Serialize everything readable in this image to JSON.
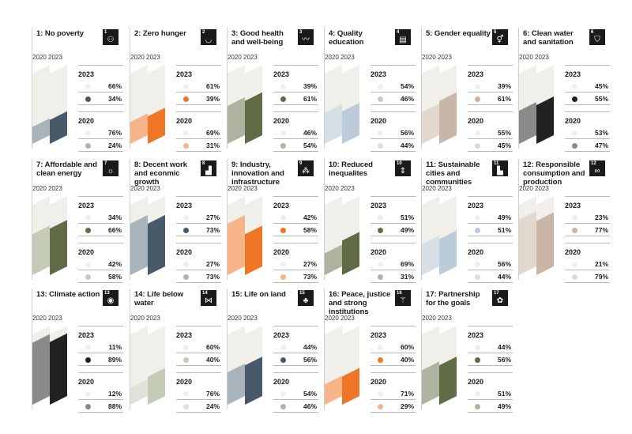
{
  "colors": {
    "negative": "#f1efea"
  },
  "chart_data": [
    {
      "type": "bar",
      "goal": "1",
      "title": "1: No poverty",
      "badge_number": "1",
      "badge_icon": "family-icon",
      "years": [
        "2020",
        "2023"
      ],
      "series": [
        {
          "year": "2023",
          "values": [
            "66%",
            "34%"
          ],
          "colors": [
            "#f1efea",
            "#48596a"
          ]
        },
        {
          "year": "2020",
          "values": [
            "76%",
            "24%"
          ],
          "colors": [
            "#f1efea",
            "#a9b3bb"
          ]
        }
      ]
    },
    {
      "type": "bar",
      "goal": "2",
      "title": "2: Zero hunger",
      "badge_number": "2",
      "badge_icon": "bowl-icon",
      "years": [
        "2020",
        "2023"
      ],
      "series": [
        {
          "year": "2023",
          "values": [
            "61%",
            "39%"
          ],
          "colors": [
            "#f1efea",
            "#ee7626"
          ]
        },
        {
          "year": "2020",
          "values": [
            "69%",
            "31%"
          ],
          "colors": [
            "#f1efea",
            "#f7b489"
          ]
        }
      ]
    },
    {
      "type": "bar",
      "goal": "3",
      "title": "3: Good health and well-being",
      "badge_number": "3",
      "badge_icon": "heartbeat-icon",
      "years": [
        "2020",
        "2023"
      ],
      "series": [
        {
          "year": "2023",
          "values": [
            "39%",
            "61%"
          ],
          "colors": [
            "#f1efea",
            "#5f6c45"
          ]
        },
        {
          "year": "2020",
          "values": [
            "46%",
            "54%"
          ],
          "colors": [
            "#f1efea",
            "#aeb49f"
          ]
        }
      ]
    },
    {
      "type": "bar",
      "goal": "4",
      "title": "4: Quality education",
      "badge_number": "4",
      "badge_icon": "book-icon",
      "years": [
        "2020",
        "2023"
      ],
      "series": [
        {
          "year": "2023",
          "values": [
            "54%",
            "46%"
          ],
          "colors": [
            "#f1efea",
            "#bccbda"
          ]
        },
        {
          "year": "2020",
          "values": [
            "56%",
            "44%"
          ],
          "colors": [
            "#f1efea",
            "#d7dee6"
          ]
        }
      ]
    },
    {
      "type": "bar",
      "goal": "5",
      "title": "5: Gender equality",
      "badge_number": "5",
      "badge_icon": "gender-icon",
      "years": [
        "2020",
        "2023"
      ],
      "series": [
        {
          "year": "2023",
          "values": [
            "39%",
            "61%"
          ],
          "colors": [
            "#f1efea",
            "#c9b6a6"
          ]
        },
        {
          "year": "2020",
          "values": [
            "55%",
            "45%"
          ],
          "colors": [
            "#f1efea",
            "#e2d8cd"
          ]
        }
      ]
    },
    {
      "type": "bar",
      "goal": "6",
      "title": "6: Clean water and sanitation",
      "badge_number": "6",
      "badge_icon": "water-glass-icon",
      "years": [
        "2020",
        "2023"
      ],
      "series": [
        {
          "year": "2023",
          "values": [
            "45%",
            "55%"
          ],
          "colors": [
            "#f1efea",
            "#222222"
          ]
        },
        {
          "year": "2020",
          "values": [
            "53%",
            "47%"
          ],
          "colors": [
            "#f1efea",
            "#8a8a8a"
          ]
        }
      ]
    },
    {
      "type": "bar",
      "goal": "7",
      "title": "7: Affordable and clean energy",
      "badge_number": "7",
      "badge_icon": "sun-icon",
      "years": [
        "2020",
        "2023"
      ],
      "series": [
        {
          "year": "2023",
          "values": [
            "34%",
            "66%"
          ],
          "colors": [
            "#f1efea",
            "#5f6c45"
          ]
        },
        {
          "year": "2020",
          "values": [
            "42%",
            "58%"
          ],
          "colors": [
            "#f1efea",
            "#c4cbb7"
          ]
        }
      ]
    },
    {
      "type": "bar",
      "goal": "8",
      "title": "8: Decent work and econmic growth",
      "badge_number": "8",
      "badge_icon": "growth-chart-icon",
      "years": [
        "2020",
        "2023"
      ],
      "series": [
        {
          "year": "2023",
          "values": [
            "27%",
            "73%"
          ],
          "colors": [
            "#f1efea",
            "#48596a"
          ]
        },
        {
          "year": "2020",
          "values": [
            "27%",
            "73%"
          ],
          "colors": [
            "#f1efea",
            "#a9b3bb"
          ]
        }
      ]
    },
    {
      "type": "bar",
      "goal": "9",
      "title": "9: Industry, innovation and infrastructure",
      "badge_number": "9",
      "badge_icon": "cubes-icon",
      "years": [
        "2020",
        "2023"
      ],
      "series": [
        {
          "year": "2023",
          "values": [
            "42%",
            "58%"
          ],
          "colors": [
            "#f1efea",
            "#ee7626"
          ]
        },
        {
          "year": "2020",
          "values": [
            "27%",
            "73%"
          ],
          "colors": [
            "#f1efea",
            "#f7b489"
          ]
        }
      ]
    },
    {
      "type": "bar",
      "goal": "10",
      "title": "10: Reduced inequalites",
      "badge_number": "10",
      "badge_icon": "equality-arrows-icon",
      "years": [
        "2020",
        "2023"
      ],
      "series": [
        {
          "year": "2023",
          "values": [
            "51%",
            "49%"
          ],
          "colors": [
            "#f1efea",
            "#5f6c45"
          ]
        },
        {
          "year": "2020",
          "values": [
            "69%",
            "31%"
          ],
          "colors": [
            "#f1efea",
            "#aeb49f"
          ]
        }
      ]
    },
    {
      "type": "bar",
      "goal": "11",
      "title": "11: Sustainable cities and communities",
      "badge_number": "11",
      "badge_icon": "city-icon",
      "years": [
        "2020",
        "2023"
      ],
      "series": [
        {
          "year": "2023",
          "values": [
            "49%",
            "51%"
          ],
          "colors": [
            "#f1efea",
            "#bccbda"
          ]
        },
        {
          "year": "2020",
          "values": [
            "56%",
            "44%"
          ],
          "colors": [
            "#f1efea",
            "#d7dee6"
          ]
        }
      ]
    },
    {
      "type": "bar",
      "goal": "12",
      "title": "12: Responsible consumption and production",
      "badge_number": "12",
      "badge_icon": "infinity-icon",
      "years": [
        "2020",
        "2023"
      ],
      "series": [
        {
          "year": "2023",
          "values": [
            "23%",
            "77%"
          ],
          "colors": [
            "#f1efea",
            "#c9b6a6"
          ]
        },
        {
          "year": "2020",
          "values": [
            "21%",
            "79%"
          ],
          "colors": [
            "#f1efea",
            "#e2d8cd"
          ]
        }
      ]
    },
    {
      "type": "bar",
      "goal": "13",
      "title": "13: Climate action",
      "badge_number": "13",
      "badge_icon": "eye-globe-icon",
      "years": [
        "2020",
        "2023"
      ],
      "series": [
        {
          "year": "2023",
          "values": [
            "11%",
            "89%"
          ],
          "colors": [
            "#f1efea",
            "#222222"
          ]
        },
        {
          "year": "2020",
          "values": [
            "12%",
            "88%"
          ],
          "colors": [
            "#f1efea",
            "#8a8a8a"
          ]
        }
      ]
    },
    {
      "type": "bar",
      "goal": "14",
      "title": "14: Life below water",
      "badge_number": "14",
      "badge_icon": "fish-icon",
      "years": [
        "2020",
        "2023"
      ],
      "series": [
        {
          "year": "2023",
          "values": [
            "60%",
            "40%"
          ],
          "colors": [
            "#f1efea",
            "#c4cbb7"
          ]
        },
        {
          "year": "2020",
          "values": [
            "76%",
            "24%"
          ],
          "colors": [
            "#f1efea",
            "#dfe2d8"
          ]
        }
      ]
    },
    {
      "type": "bar",
      "goal": "15",
      "title": "15: Life on land",
      "badge_number": "15",
      "badge_icon": "tree-bird-icon",
      "years": [
        "2020",
        "2023"
      ],
      "series": [
        {
          "year": "2023",
          "values": [
            "44%",
            "56%"
          ],
          "colors": [
            "#f1efea",
            "#48596a"
          ]
        },
        {
          "year": "2020",
          "values": [
            "54%",
            "46%"
          ],
          "colors": [
            "#f1efea",
            "#a9b3bb"
          ]
        }
      ]
    },
    {
      "type": "bar",
      "goal": "16",
      "title": "16: Peace, justice and strong institutions",
      "badge_number": "16",
      "badge_icon": "dove-icon",
      "years": [
        "2020",
        "2023"
      ],
      "series": [
        {
          "year": "2023",
          "values": [
            "60%",
            "40%"
          ],
          "colors": [
            "#f1efea",
            "#ee7626"
          ]
        },
        {
          "year": "2020",
          "values": [
            "71%",
            "29%"
          ],
          "colors": [
            "#f1efea",
            "#f7b489"
          ]
        }
      ]
    },
    {
      "type": "bar",
      "goal": "17",
      "title": "17: Partnership for the goals",
      "badge_number": "17",
      "badge_icon": "flower-ring-icon",
      "years": [
        "2020",
        "2023"
      ],
      "series": [
        {
          "year": "2023",
          "values": [
            "44%",
            "56%"
          ],
          "colors": [
            "#f1efea",
            "#5f6c45"
          ]
        },
        {
          "year": "2020",
          "values": [
            "51%",
            "49%"
          ],
          "colors": [
            "#f1efea",
            "#aeb49f"
          ]
        }
      ]
    }
  ]
}
